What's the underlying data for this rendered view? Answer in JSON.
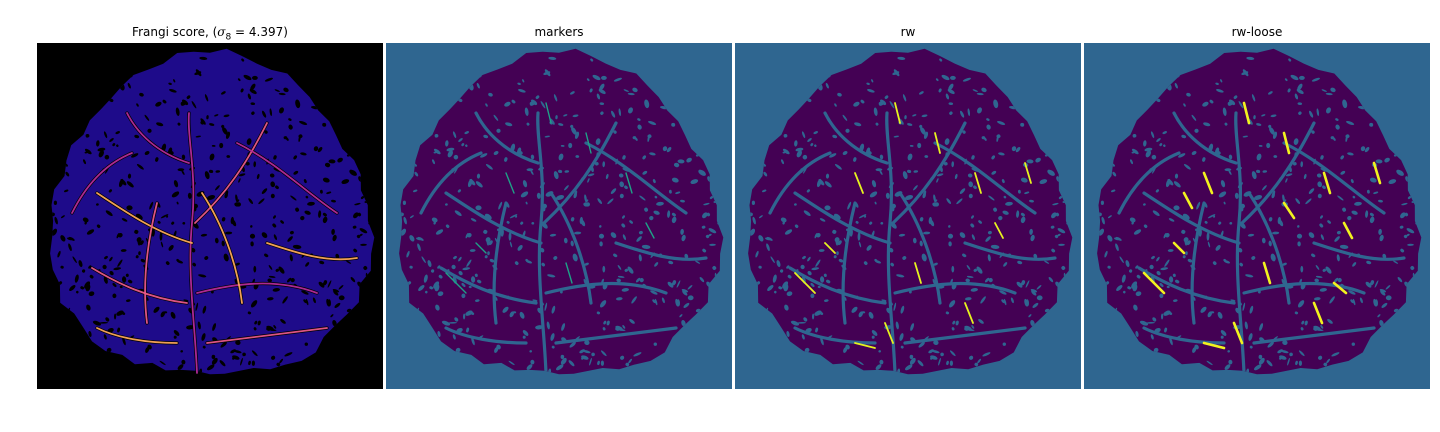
{
  "panels": [
    {
      "id": "frangi",
      "title_prefix": "Frangi score, (",
      "sigma_symbol": "σ",
      "sigma_sub": "8",
      "title_suffix": " = 4.397)",
      "background": "#000000",
      "disk_color": "#1e0b8a",
      "vessel_colors": [
        "#b52a9a",
        "#e8588a",
        "#fca85a"
      ]
    },
    {
      "id": "markers",
      "title": "markers",
      "background": "#2f6690",
      "disk_color": "#440154",
      "vessel_color": "#1fa187"
    },
    {
      "id": "rw",
      "title": "rw",
      "background": "#2f6690",
      "disk_color": "#440154",
      "vessel_color": "#e6f21f"
    },
    {
      "id": "rw-loose",
      "title": "rw-loose",
      "background": "#2f6690",
      "disk_color": "#440154",
      "vessel_color": "#f2f21f"
    }
  ]
}
